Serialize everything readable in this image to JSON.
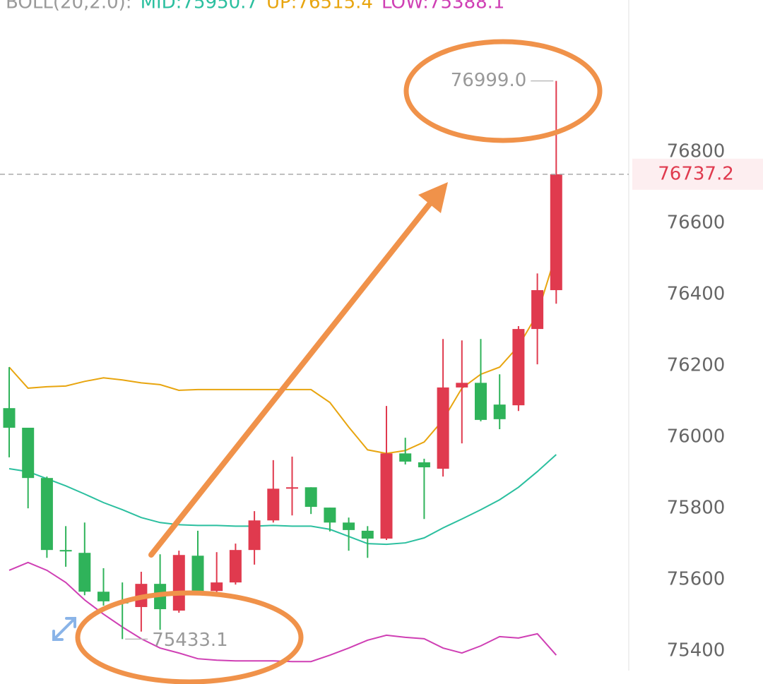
{
  "chart_data": {
    "type": "candlestick",
    "header": [
      {
        "text": "BOLL(20,2.0):",
        "color": "#9a9a9a"
      },
      {
        "text": "MID:75950.7",
        "color": "#2bbf9f"
      },
      {
        "text": "UP:76515.4",
        "color": "#e8a50f"
      },
      {
        "text": "LOW:75388.1",
        "color": "#cf3fb4"
      }
    ],
    "open": [
      76081,
      76026,
      75885,
      75683,
      75675,
      75566,
      75539,
      75523,
      75588,
      75513,
      75667,
      75568,
      75592,
      75683,
      75766,
      75855,
      75859,
      75802,
      75760,
      75737,
      75715,
      75954,
      75929,
      75911,
      76139,
      76152,
      76091,
      76089,
      76303,
      76412
    ],
    "high": [
      76196,
      76026,
      75889,
      75750,
      75760,
      75632,
      75592,
      75622,
      75671,
      75681,
      75737,
      75677,
      75701,
      75792,
      75935,
      75945,
      75859,
      75802,
      75774,
      75750,
      76087,
      75998,
      75939,
      76275,
      76271,
      76275,
      76176,
      76311,
      76459,
      76999.0
    ],
    "low": [
      75943,
      75800,
      75661,
      75636,
      75556,
      75527,
      75433.1,
      75454,
      75459,
      75507,
      75562,
      75552,
      75586,
      75642,
      75760,
      75780,
      75784,
      75735,
      75681,
      75661,
      75711,
      75923,
      75770,
      75889,
      75982,
      76044,
      76022,
      76073,
      76204,
      76374
    ],
    "close": [
      76026,
      75885,
      75683,
      75679,
      75566,
      75539,
      75533,
      75588,
      75517,
      75669,
      75568,
      75592,
      75683,
      75766,
      75855,
      75859,
      75804,
      75760,
      75739,
      75715,
      75954,
      75931,
      75915,
      76139,
      76152,
      76048,
      76050,
      76303,
      76412,
      76737.2
    ],
    "up_color": "#e03a4e",
    "down_color": "#2fb35a",
    "series": [
      {
        "color": "#2bbf9f",
        "values": [
          75911,
          75903,
          75883,
          75863,
          75840,
          75816,
          75796,
          75774,
          75760,
          75754,
          75752,
          75752,
          75750,
          75750,
          75752,
          75750,
          75750,
          75741,
          75721,
          75701,
          75699,
          75703,
          75717,
          75745,
          75770,
          75796,
          75824,
          75859,
          75903,
          75950.7
        ]
      },
      {
        "color": "#e8a50f",
        "values": [
          76196,
          76137,
          76141,
          76143,
          76156,
          76166,
          76160,
          76152,
          76147,
          76131,
          76133,
          76133,
          76133,
          76133,
          76133,
          76133,
          76133,
          76097,
          76028,
          75964,
          75954,
          75962,
          75986,
          76048,
          76137,
          76176,
          76196,
          76255,
          76345,
          76515.4
        ]
      },
      {
        "color": "#cf3fb4",
        "values": [
          75626,
          75648,
          75626,
          75592,
          75543,
          75503,
          75467,
          75434,
          75408,
          75394,
          75378,
          75374,
          75372,
          75372,
          75372,
          75370,
          75370,
          75388,
          75408,
          75430,
          75444,
          75438,
          75434,
          75408,
          75394,
          75414,
          75440,
          75436,
          75448,
          75388.1
        ]
      }
    ],
    "max_label": "76999.0",
    "min_label": "75433.1",
    "last_price": {
      "value": 76737.2,
      "label": "76737.2"
    },
    "ylim": [
      75315,
      77226
    ],
    "yticks": [
      75400,
      75600,
      75800,
      76000,
      76200,
      76400,
      76600,
      76800
    ],
    "grid": true
  }
}
